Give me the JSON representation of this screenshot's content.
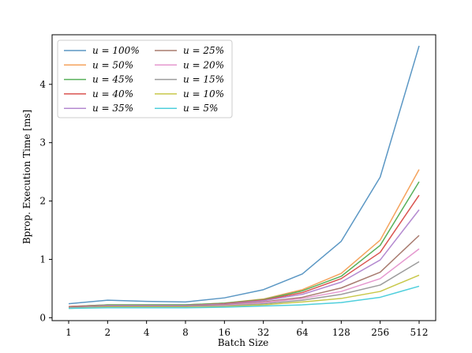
{
  "chart_data": {
    "type": "line",
    "title": "",
    "xlabel": "Batch Size",
    "ylabel": "Bprop. Execution Time [ms]",
    "x": [
      1,
      2,
      4,
      8,
      16,
      32,
      64,
      128,
      256,
      512
    ],
    "x_tick_labels": [
      "1",
      "2",
      "4",
      "8",
      "16",
      "32",
      "64",
      "128",
      "256",
      "512"
    ],
    "x_scale": "log2",
    "ylim": [
      -0.05,
      4.85
    ],
    "y_ticks": [
      0,
      1,
      2,
      3,
      4
    ],
    "y_tick_labels": [
      "0",
      "1",
      "2",
      "3",
      "4"
    ],
    "grid": false,
    "legend_placement": "top-left",
    "legend_columns": 2,
    "series": [
      {
        "name": "u = 100%",
        "color": "#5b97c4",
        "values": [
          0.24,
          0.3,
          0.28,
          0.27,
          0.34,
          0.48,
          0.75,
          1.31,
          2.41,
          4.66
        ]
      },
      {
        "name": "u = 50%",
        "color": "#f5a35d",
        "values": [
          0.19,
          0.22,
          0.22,
          0.22,
          0.25,
          0.32,
          0.48,
          0.76,
          1.33,
          2.54
        ]
      },
      {
        "name": "u = 45%",
        "color": "#58b05a",
        "values": [
          0.19,
          0.22,
          0.22,
          0.22,
          0.25,
          0.31,
          0.46,
          0.71,
          1.24,
          2.33
        ]
      },
      {
        "name": "u = 40%",
        "color": "#d9534f",
        "values": [
          0.19,
          0.21,
          0.21,
          0.21,
          0.24,
          0.3,
          0.43,
          0.67,
          1.12,
          2.1
        ]
      },
      {
        "name": "u = 35%",
        "color": "#b48ad0",
        "values": [
          0.18,
          0.21,
          0.21,
          0.21,
          0.23,
          0.29,
          0.4,
          0.61,
          0.99,
          1.85
        ]
      },
      {
        "name": "u = 25%",
        "color": "#a87b6f",
        "values": [
          0.18,
          0.2,
          0.2,
          0.2,
          0.22,
          0.27,
          0.35,
          0.51,
          0.78,
          1.41
        ]
      },
      {
        "name": "u = 20%",
        "color": "#e598cf",
        "values": [
          0.17,
          0.19,
          0.19,
          0.19,
          0.21,
          0.26,
          0.33,
          0.45,
          0.67,
          1.18
        ]
      },
      {
        "name": "u = 15%",
        "color": "#9c9c9c",
        "values": [
          0.17,
          0.19,
          0.19,
          0.19,
          0.2,
          0.24,
          0.3,
          0.4,
          0.56,
          0.96
        ]
      },
      {
        "name": "u = 10%",
        "color": "#c8c84a",
        "values": [
          0.16,
          0.18,
          0.18,
          0.18,
          0.19,
          0.22,
          0.27,
          0.33,
          0.45,
          0.73
        ]
      },
      {
        "name": "u = 5%",
        "color": "#4fcfdc",
        "values": [
          0.16,
          0.17,
          0.17,
          0.17,
          0.18,
          0.2,
          0.22,
          0.26,
          0.35,
          0.54
        ]
      }
    ]
  }
}
